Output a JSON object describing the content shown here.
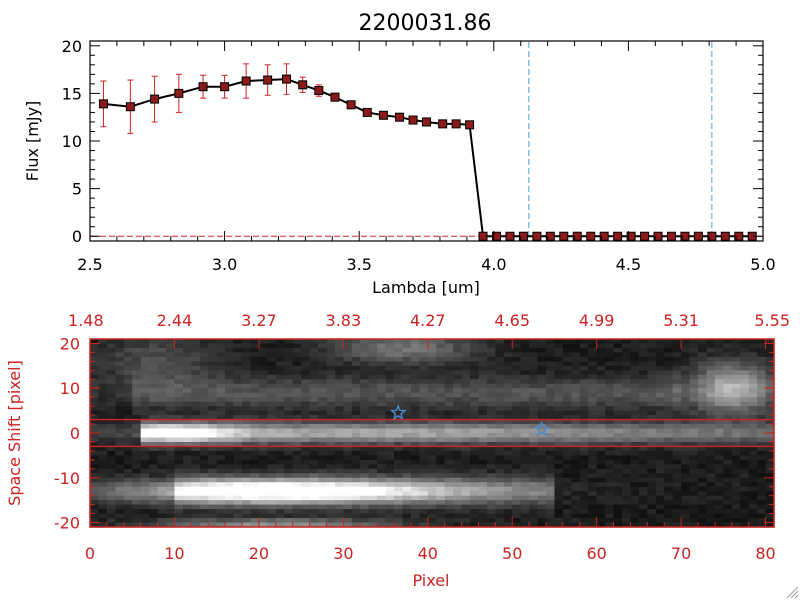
{
  "chart_data": [
    {
      "type": "line",
      "title": "2200031.86",
      "xlabel": "Lambda [um]",
      "ylabel": "Flux [mJy]",
      "xlim": [
        2.5,
        5.0
      ],
      "ylim": [
        -0.5,
        20.5
      ],
      "x_ticks": [
        "2.5",
        "3.0",
        "3.5",
        "4.0",
        "4.5",
        "5.0"
      ],
      "y_ticks": [
        "0",
        "5",
        "10",
        "15",
        "20"
      ],
      "grid": false,
      "marker": "filled-square",
      "series": [
        {
          "x": [
            2.55,
            2.65,
            2.74,
            2.83,
            2.92,
            3.0,
            3.08,
            3.16,
            3.23,
            3.29,
            3.35,
            3.41,
            3.47,
            3.53,
            3.59,
            3.65,
            3.7,
            3.75,
            3.81,
            3.86,
            3.91,
            3.96,
            4.01,
            4.06,
            4.11,
            4.16,
            4.21,
            4.26,
            4.31,
            4.36,
            4.41,
            4.46,
            4.51,
            4.56,
            4.61,
            4.66,
            4.71,
            4.76,
            4.81,
            4.86,
            4.91,
            4.96
          ],
          "y": [
            13.9,
            13.6,
            14.4,
            15.0,
            15.7,
            15.7,
            16.3,
            16.4,
            16.5,
            15.9,
            15.3,
            14.6,
            13.8,
            13.0,
            12.7,
            12.5,
            12.2,
            12.0,
            11.8,
            11.8,
            11.7,
            0,
            0,
            0,
            0,
            0,
            0,
            0,
            0,
            0,
            0,
            0,
            0,
            0,
            0,
            0,
            0,
            0,
            0,
            0,
            0,
            0
          ],
          "yerr": [
            2.4,
            2.8,
            2.4,
            2.0,
            1.2,
            1.2,
            1.8,
            1.6,
            1.6,
            0.8,
            0.6,
            0.4,
            0.4,
            0.3,
            0.3,
            0.3,
            0.3,
            0.3,
            0.3,
            0.3,
            0.3,
            0,
            0,
            0,
            0,
            0,
            0,
            0,
            0,
            0,
            0,
            0,
            0,
            0,
            0,
            0,
            0,
            0,
            0,
            0,
            0,
            0
          ],
          "line_color": "#000000",
          "marker_color": "#8b1a1a",
          "errorbar_color": "#cc2222"
        }
      ],
      "vlines": [
        {
          "x": 4.13,
          "color": "#4aa3c8",
          "style": "dashed"
        },
        {
          "x": 4.81,
          "color": "#4aa3c8",
          "style": "dashed"
        }
      ],
      "hlines": [
        {
          "y": 0,
          "color": "#cc2222",
          "style": "dashed"
        }
      ]
    },
    {
      "type": "heatmap",
      "xlabel": "Pixel",
      "ylabel": "Space Shift [pixel]",
      "xlim": [
        0,
        81
      ],
      "ylim": [
        -21,
        21
      ],
      "x_ticks": [
        "0",
        "10",
        "20",
        "30",
        "40",
        "50",
        "60",
        "70",
        "80"
      ],
      "y_ticks": [
        "-20",
        "-10",
        "0",
        "10",
        "20"
      ],
      "top_axis_ticks": [
        "1.48",
        "2.44",
        "3.27",
        "3.83",
        "4.27",
        "4.65",
        "4.99",
        "5.31",
        "5.55"
      ],
      "colormap": "grayscale",
      "axis_color": "#cc2222",
      "aperture_lines": [
        3,
        -3
      ],
      "aperture_color": "#cc2222",
      "stars": [
        {
          "x": 36.5,
          "y": 4.5,
          "color": "#4a8fd8"
        },
        {
          "x": 53.5,
          "y": 0.8,
          "color": "#4a8fd8"
        }
      ]
    }
  ]
}
